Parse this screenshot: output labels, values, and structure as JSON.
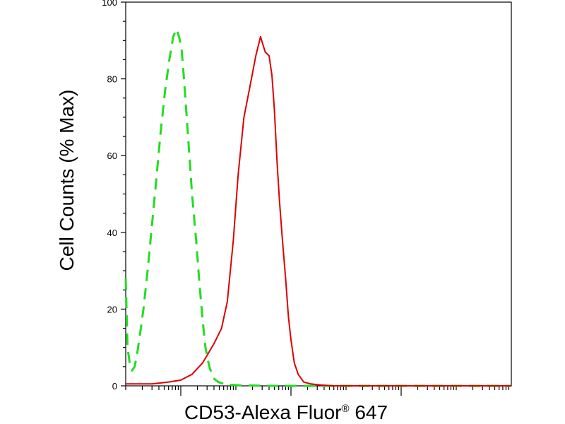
{
  "chart_data": {
    "type": "line",
    "xlabel": "CD53-Alexa Fluor",
    "xlabel_superscript": "®",
    "xlabel_suffix": " 647",
    "ylabel": "Cell Counts (% Max)",
    "x_scale": "log",
    "xlim": [
      1,
      10000000
    ],
    "ylim": [
      0,
      100
    ],
    "yticks": [
      0,
      20,
      40,
      60,
      80,
      100
    ],
    "x_major_ticks": [
      10,
      1000,
      100000,
      10000000
    ],
    "grid": false,
    "series": [
      {
        "color": "#22dd22",
        "style": "dashed",
        "x": [
          1,
          1.08,
          1.18,
          1.3,
          1.45,
          1.6,
          1.8,
          2.1,
          2.5,
          3,
          3.6,
          4.3,
          5.2,
          6.2,
          7.3,
          8.3,
          9.3,
          10.3,
          11.3,
          12.5,
          14,
          16,
          19,
          22,
          25,
          28,
          33,
          39,
          48,
          60,
          75,
          95,
          130,
          200,
          400,
          1000,
          10000,
          10000000
        ],
        "y": [
          28,
          10,
          6,
          4,
          5,
          8,
          13,
          20,
          30,
          42,
          54,
          66,
          77,
          85,
          91,
          93,
          91,
          88,
          81,
          72,
          62,
          50,
          38,
          26,
          17,
          10,
          5,
          2,
          1,
          0.5,
          0.3,
          0.2,
          0.1,
          0.1,
          0,
          0,
          0,
          0
        ]
      },
      {
        "color": "#dd0000",
        "style": "solid",
        "x": [
          1,
          3,
          6,
          10,
          16,
          25,
          40,
          55,
          70,
          90,
          110,
          140,
          180,
          230,
          280,
          340,
          400,
          450,
          500,
          560,
          620,
          700,
          800,
          900,
          1000,
          1150,
          1350,
          1700,
          2300,
          3500,
          6000,
          10000000
        ],
        "y": [
          0.5,
          0.5,
          1,
          1.5,
          3,
          6,
          11,
          15,
          22,
          38,
          55,
          70,
          78,
          86,
          91,
          87,
          86,
          81,
          72,
          58,
          48,
          38,
          28,
          18,
          12,
          6,
          3,
          1,
          0.5,
          0.2,
          0,
          0
        ]
      }
    ]
  }
}
